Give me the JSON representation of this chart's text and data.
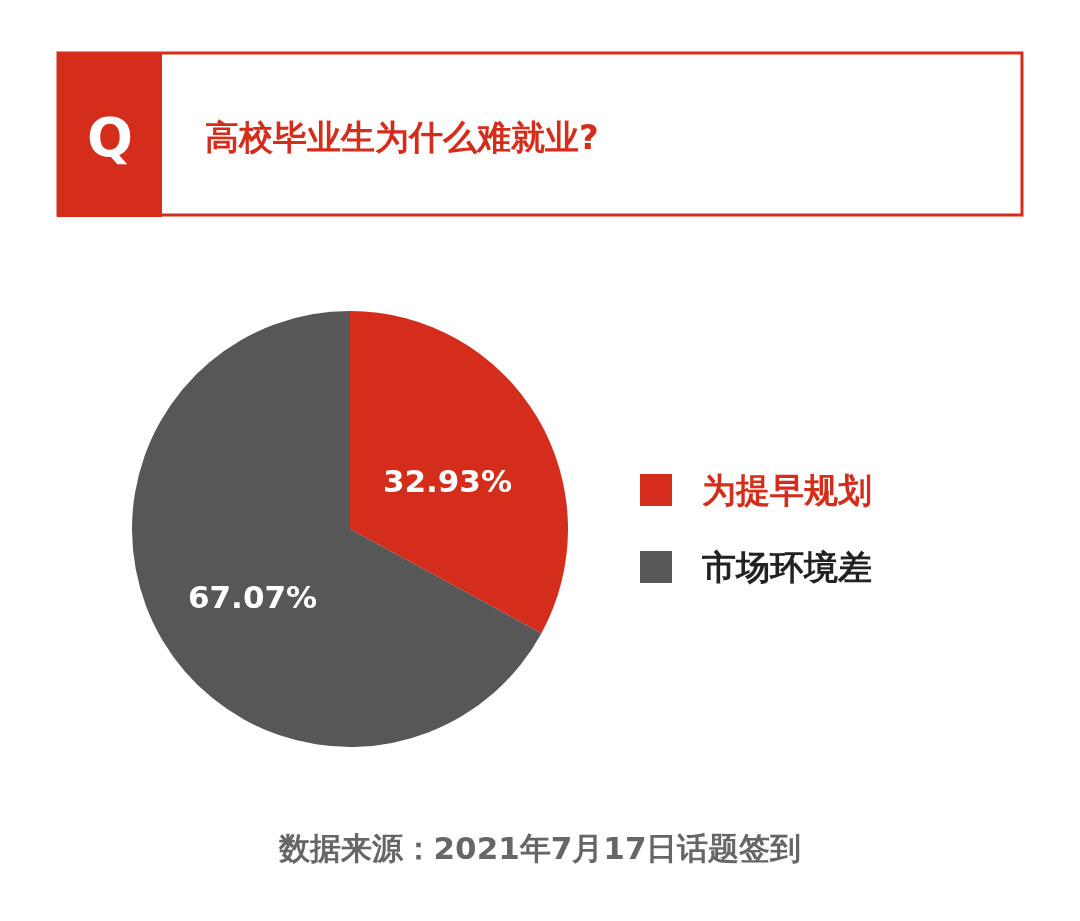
{
  "chart_data": {
    "type": "pie",
    "title": "高校毕业生为什么难就业?",
    "categories": [
      "为提早规划",
      "市场环境差"
    ],
    "values": [
      32.93,
      67.07
    ],
    "colors": [
      "#d42d1b",
      "#575757"
    ],
    "value_labels": [
      "32.93%",
      "67.07%"
    ],
    "legend": "right",
    "annotations": [
      "Q",
      "数据来源：2021年7月17日话题签到"
    ]
  }
}
